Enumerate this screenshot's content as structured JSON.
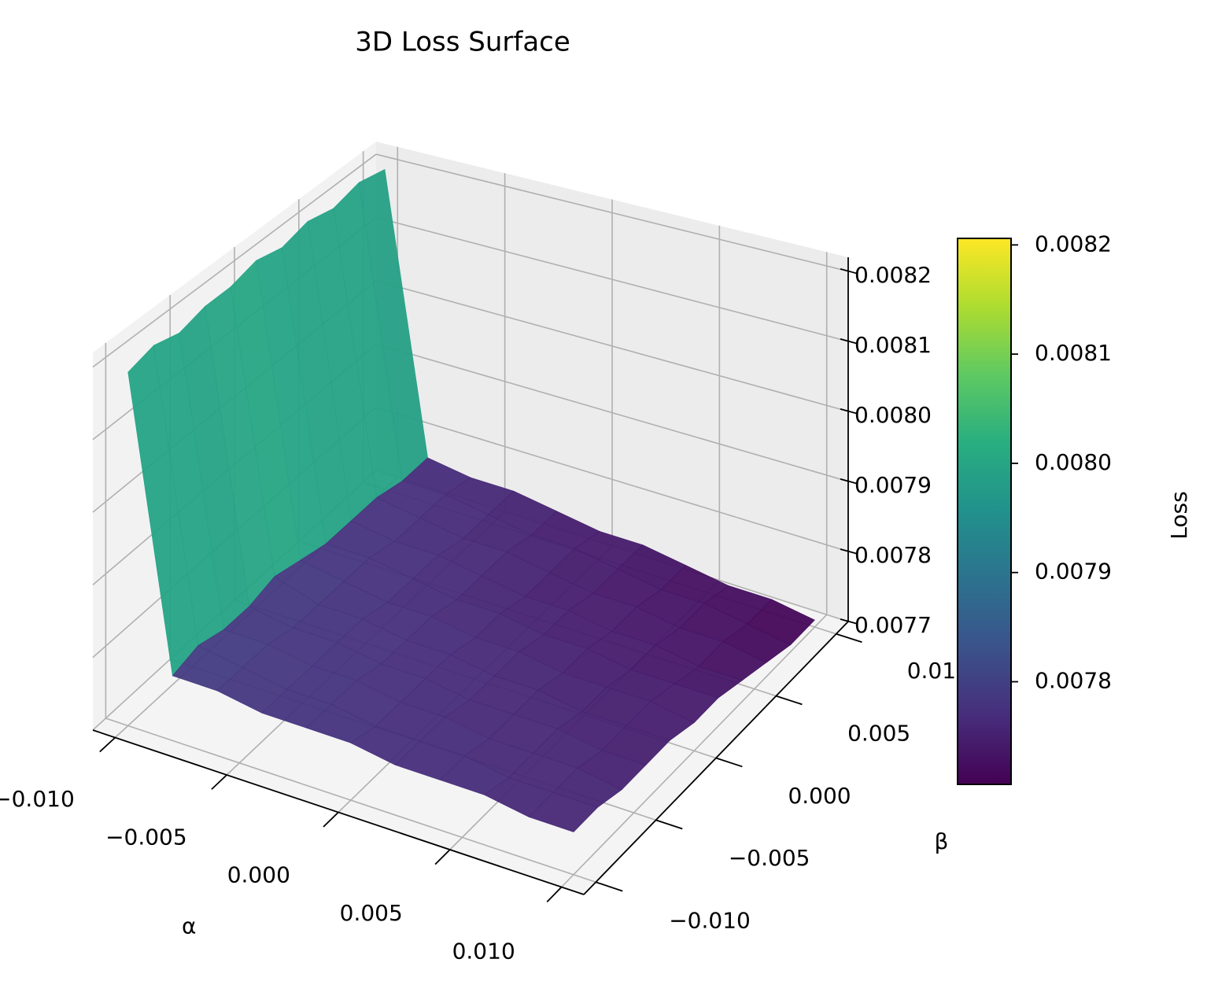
{
  "chart_data": {
    "type": "surface",
    "title": "3D Loss Surface",
    "xlabel": "α",
    "ylabel": "β",
    "zlabel": "Loss",
    "colorbar_label": "Loss",
    "colormap": "viridis",
    "x": [
      -0.01,
      -0.008,
      -0.006,
      -0.004,
      -0.002,
      0,
      0.002,
      0.004,
      0.006,
      0.008,
      0.01
    ],
    "y": [
      -0.01,
      -0.008,
      -0.006,
      -0.004,
      -0.002,
      0,
      0.002,
      0.004,
      0.006,
      0.008,
      0.01
    ],
    "z": [
      [
        0.00819,
        0.00779,
        0.00779,
        0.00778,
        0.00778,
        0.00778,
        0.00777,
        0.00777,
        0.00777,
        0.00776,
        0.00776
      ],
      [
        0.0082,
        0.0078,
        0.00779,
        0.00778,
        0.00778,
        0.00777,
        0.00777,
        0.00777,
        0.00776,
        0.00776,
        0.00776
      ],
      [
        0.00819,
        0.00779,
        0.00779,
        0.00778,
        0.00778,
        0.00777,
        0.00777,
        0.00776,
        0.00776,
        0.00776,
        0.00775
      ],
      [
        0.0082,
        0.00779,
        0.00778,
        0.00778,
        0.00777,
        0.00777,
        0.00776,
        0.00776,
        0.00776,
        0.00775,
        0.00775
      ],
      [
        0.0082,
        0.0078,
        0.00778,
        0.00778,
        0.00777,
        0.00777,
        0.00776,
        0.00776,
        0.00775,
        0.00775,
        0.00775
      ],
      [
        0.00821,
        0.00779,
        0.00778,
        0.00777,
        0.00777,
        0.00776,
        0.00776,
        0.00775,
        0.00775,
        0.00775,
        0.00774
      ],
      [
        0.0082,
        0.00778,
        0.00778,
        0.00777,
        0.00776,
        0.00776,
        0.00775,
        0.00775,
        0.00774,
        0.00774,
        0.00774
      ],
      [
        0.00821,
        0.00778,
        0.00777,
        0.00777,
        0.00776,
        0.00775,
        0.00775,
        0.00774,
        0.00774,
        0.00773,
        0.00773
      ],
      [
        0.0082,
        0.00778,
        0.00777,
        0.00776,
        0.00776,
        0.00775,
        0.00774,
        0.00774,
        0.00773,
        0.00773,
        0.00772
      ],
      [
        0.00821,
        0.00777,
        0.00777,
        0.00776,
        0.00775,
        0.00775,
        0.00774,
        0.00773,
        0.00773,
        0.00772,
        0.00771
      ],
      [
        0.0082,
        0.00777,
        0.00776,
        0.00776,
        0.00775,
        0.00774,
        0.00774,
        0.00773,
        0.00772,
        0.00772,
        0.00771
      ]
    ],
    "xlim": [
      -0.011,
      0.011
    ],
    "ylim": [
      -0.011,
      0.011
    ],
    "zlim": [
      0.0077,
      0.00822
    ],
    "xticks": [
      {
        "value": -0.01,
        "label": "−0.010"
      },
      {
        "value": -0.005,
        "label": "−0.005"
      },
      {
        "value": 0,
        "label": "0.000"
      },
      0.005,
      {
        "value": 0.01,
        "label": "0.010"
      }
    ],
    "yticks": [
      {
        "value": -0.01,
        "label": "−0.010"
      },
      {
        "value": -0.005,
        "label": "−0.005"
      },
      {
        "value": 0,
        "label": "0.000"
      },
      0.005,
      {
        "value": 0.01,
        "label": "0.010"
      }
    ],
    "zticks": [
      0.0077,
      0.0078,
      0.0079,
      {
        "value": 0.008,
        "label": "0.0080"
      },
      {
        "value": 0.0081,
        "label": "0.0081"
      },
      {
        "value": 0.0082,
        "label": "0.0082"
      }
    ],
    "clim": [
      0.007706,
      0.008206
    ],
    "cbticks": [
      0.0078,
      0.0079,
      {
        "value": 0.008,
        "label": "0.0080"
      },
      0.0081,
      0.0082
    ],
    "grid": true
  }
}
